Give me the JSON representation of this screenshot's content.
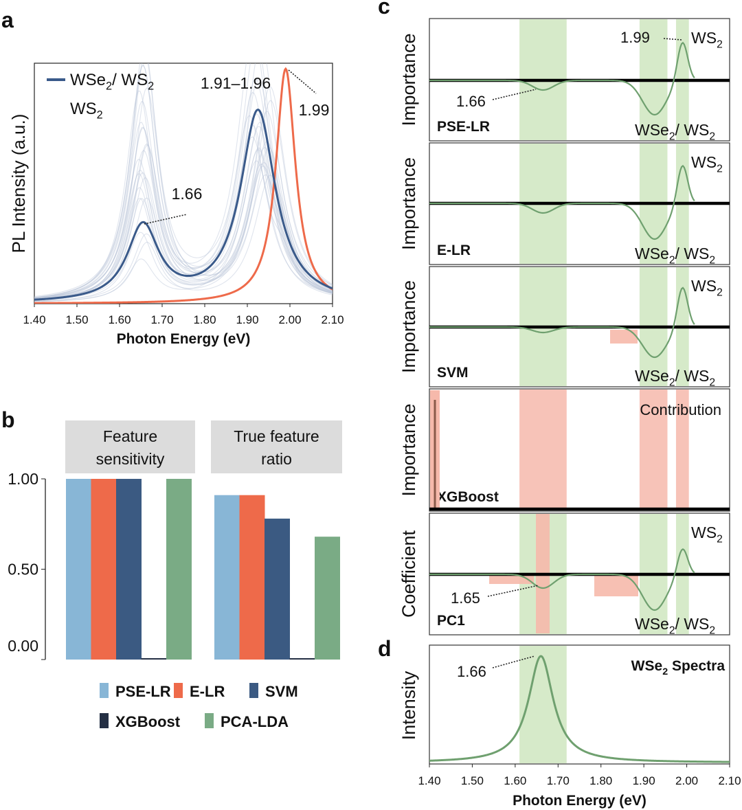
{
  "chart_data": [
    {
      "panel": "a",
      "type": "line",
      "xlabel": "Photon Energy (eV)",
      "ylabel": "PL Intensity (a.u.)",
      "xlim": [
        1.4,
        2.1
      ],
      "xticks": [
        "1.40",
        "1.50",
        "1.60",
        "1.70",
        "1.80",
        "1.90",
        "2.00",
        "2.10"
      ],
      "legend": {
        "position": "top-left",
        "entries": [
          {
            "label_main": "WSe",
            "label_mid": "/ WS",
            "color": "#3a5a8a"
          },
          {
            "label_main": "WS",
            "color": "#ee6a4a"
          }
        ]
      },
      "series": [
        {
          "peaks": [
            {
              "center": 1.655,
              "height": 0.32,
              "width": 0.045
            },
            {
              "center": 1.925,
              "height": 0.86,
              "width": 0.05
            }
          ]
        },
        {
          "peaks": [
            {
              "center": 1.99,
              "height": 1.0,
              "width": 0.028
            }
          ]
        }
      ],
      "annotations": [
        "1.66",
        "1.91–1.96",
        "1.99"
      ]
    },
    {
      "panel": "b",
      "type": "bar",
      "yticks": [
        "1.00",
        "0.50",
        "0.00"
      ],
      "ylim": [
        0,
        1.0
      ],
      "groups": [
        "Feature\nsensitivity",
        "True feature\nratio"
      ],
      "series": [
        {
          "name": "PSE-LR",
          "color": "#88b6d6",
          "values": [
            1.0,
            0.91
          ]
        },
        {
          "name": "E-LR",
          "color": "#ee6a4a",
          "values": [
            1.0,
            0.91
          ]
        },
        {
          "name": "SVM",
          "color": "#3b5a82",
          "values": [
            1.0,
            0.78
          ]
        },
        {
          "name": "XGBoost",
          "color": "#242f44",
          "values": [
            0.0,
            0.0
          ]
        },
        {
          "name": "PCA-LDA",
          "color": "#7aab85",
          "values": [
            1.0,
            0.68
          ]
        }
      ]
    },
    {
      "panel": "c",
      "type": "line",
      "xlim": [
        1.4,
        2.1
      ],
      "highlight_bands": [
        [
          1.61,
          1.72
        ],
        [
          1.89,
          1.955
        ],
        [
          1.975,
          2.005
        ]
      ],
      "subplots": [
        {
          "model": "PSE-LR",
          "ylabel": "Importance",
          "peak_labels": [
            "WS",
            "WSe"
          ],
          "annotations": [
            "1.99",
            "1.66"
          ]
        },
        {
          "model": "E-LR",
          "ylabel": "Importance",
          "peak_labels": [
            "WS",
            "WSe"
          ]
        },
        {
          "model": "SVM",
          "ylabel": "Importance",
          "peak_labels": [
            "WS",
            "WSe"
          ]
        },
        {
          "model": "XGBoost",
          "ylabel": "Importance",
          "annotations": [
            "Contribution"
          ]
        },
        {
          "model": "PC1",
          "ylabel": "Coefficient",
          "peak_labels": [
            "WS",
            "WSe"
          ],
          "annotations": [
            "1.65"
          ]
        }
      ]
    },
    {
      "panel": "d",
      "type": "line",
      "title": "WSe",
      "title_suffix": "Spectra",
      "xlabel": "Photon Energy (eV)",
      "ylabel": "Intensity",
      "xlim": [
        1.4,
        2.1
      ],
      "xticks": [
        "1.40",
        "1.50",
        "1.60",
        "1.70",
        "1.80",
        "1.90",
        "2.00",
        "2.10"
      ],
      "peaks": [
        {
          "center": 1.66,
          "height": 1.0,
          "width": 0.035
        }
      ],
      "annotations": [
        "1.66"
      ]
    }
  ],
  "panel_labels": {
    "a": "a",
    "b": "b",
    "c": "c",
    "d": "d"
  },
  "subscript": "2",
  "colors": {
    "blue": "#3a5a8a",
    "orange": "#ee6a4a",
    "green": "#6fa06f",
    "green_band": "#cfe6bf",
    "pink_band": "#f6b9ab",
    "group_box": "#dcdcdc"
  }
}
